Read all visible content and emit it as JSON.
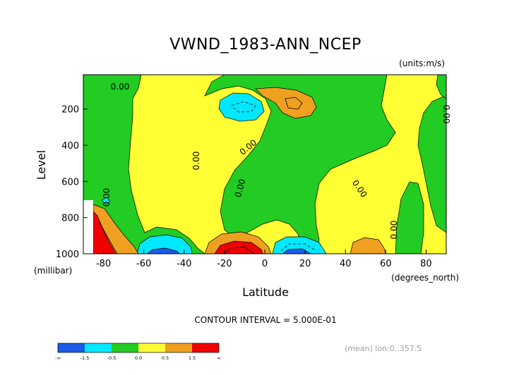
{
  "chart_data": {
    "type": "heatmap",
    "title": "VWND_1983-ANN_NCEP",
    "units": "(units:m/s)",
    "xlabel": "Latitude",
    "x_units": "(degrees_north)",
    "ylabel": "Level",
    "y_units": "(millibar)",
    "xlim": [
      -90,
      90
    ],
    "ylim": [
      1000,
      10
    ],
    "y_inverted": true,
    "x_ticks": [
      -80,
      -60,
      -40,
      -20,
      0,
      20,
      40,
      60,
      80
    ],
    "y_ticks": [
      200,
      400,
      600,
      800,
      1000
    ],
    "contour_interval_text": "CONTOUR INTERVAL = 5.000E-01",
    "contour_label": "0.00",
    "info_text": "(mean) lon:0..357.5",
    "colorbar": {
      "labels": [
        "-∞",
        "-1.5",
        "-0.5",
        "0.0",
        "0.5",
        "1.5",
        "∞"
      ],
      "colors": [
        "#1a5ce6",
        "#00e8ff",
        "#22cc22",
        "#ffff33",
        "#f0a020",
        "#f00000"
      ]
    },
    "features": [
      {
        "level": "0.5 to 1.5",
        "color": "#f0a020",
        "lat_range": [
          -24,
          -8
        ],
        "pressure_range": [
          860,
          1000
        ]
      },
      {
        "level": ">1.5",
        "color": "#f00000",
        "lat_range": [
          -20,
          -10
        ],
        "pressure_range": [
          950,
          1000
        ]
      },
      {
        "level": "-0.5 to -1.5",
        "color": "#00e8ff",
        "lat_range": [
          -60,
          -42
        ],
        "pressure_range": [
          920,
          1000
        ]
      },
      {
        "level": "<-1.5",
        "color": "#1a5ce6",
        "lat_range": [
          -56,
          -46
        ],
        "pressure_range": [
          970,
          1000
        ]
      },
      {
        "level": "-0.5 to -1.5",
        "color": "#00e8ff",
        "lat_range": [
          7,
          25
        ],
        "pressure_range": [
          920,
          1000
        ]
      },
      {
        "level": "<-1.5",
        "color": "#1a5ce6",
        "lat_range": [
          11,
          20
        ],
        "pressure_range": [
          970,
          1000
        ]
      },
      {
        "level": "-0.5 to -1.5",
        "color": "#00e8ff",
        "lat_range": [
          -29,
          -10
        ],
        "pressure_range": [
          110,
          270
        ]
      },
      {
        "level": "0.5 to 1.5",
        "color": "#f0a020",
        "lat_range": [
          9,
          22
        ],
        "pressure_range": [
          120,
          250
        ]
      },
      {
        "level": "0.5 to 1.5",
        "color": "#f0a020",
        "lat_range": [
          42,
          54
        ],
        "pressure_range": [
          920,
          1000
        ]
      },
      {
        "level": ">1.5",
        "color": "#f00000",
        "lat_range": [
          -90,
          -83
        ],
        "pressure_range": [
          770,
          1000
        ]
      }
    ]
  }
}
